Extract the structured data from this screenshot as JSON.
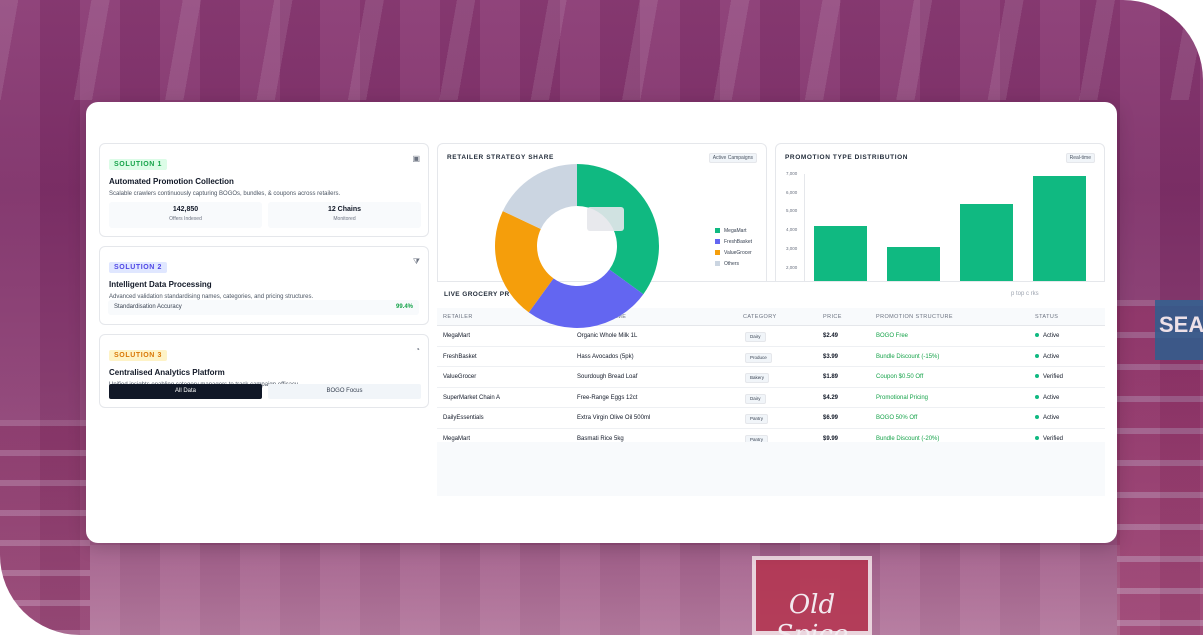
{
  "background": {
    "floor_sign": "Old Spice",
    "side_sign": "SEAFO"
  },
  "solutions": [
    {
      "tag": "SOLUTION 1",
      "tag_color": "#16a34a",
      "tag_bg": "#dcfce7",
      "title": "Automated Promotion Collection",
      "desc": "Scalable crawlers continuously capturing BOGOs, bundles, & coupons across retailers.",
      "stats": [
        {
          "value": "142,850",
          "label": "Offers Indexed"
        },
        {
          "value": "12 Chains",
          "label": "Monitored"
        }
      ],
      "icon": "robot-icon"
    },
    {
      "tag": "SOLUTION 2",
      "tag_color": "#4f46e5",
      "tag_bg": "#e0e7ff",
      "title": "Intelligent Data Processing",
      "desc": "Advanced validation standardising names, categories, and pricing structures.",
      "accuracy_label": "Standardisation Accuracy",
      "accuracy_value": "99.4%",
      "icon": "filter-icon"
    },
    {
      "tag": "SOLUTION 3",
      "tag_color": "#d97706",
      "tag_bg": "#fef3c7",
      "title": "Centralised Analytics Platform",
      "desc": "Unified insights enabling category managers to track campaign efficacy.",
      "toggle": [
        "All Data",
        "BOGO Focus"
      ],
      "icon": "pie-chart-icon"
    }
  ],
  "strategy_panel": {
    "title": "RETAILER STRATEGY SHARE",
    "badge": "Active Campaigns"
  },
  "promo_panel": {
    "title": "PROMOTION TYPE DISTRIBUTION",
    "badge": "Real-time"
  },
  "chart_data": [
    {
      "type": "pie",
      "title": "RETAILER STRATEGY SHARE",
      "categories": [
        "MegaMart",
        "FreshBasket",
        "ValueGrocer",
        "Others"
      ],
      "values": [
        35,
        25,
        22,
        18
      ],
      "colors": [
        "#10b981",
        "#6366f1",
        "#f59e0b",
        "#cbd5e1"
      ],
      "legend": "right"
    },
    {
      "type": "bar",
      "title": "PROMOTION TYPE DISTRIBUTION",
      "values": [
        4200,
        3100,
        5400,
        6900
      ],
      "ylim": [
        0,
        7000
      ],
      "yticks": [
        "1,000",
        "2,000",
        "3,000",
        "4,000",
        "5,000",
        "6,000",
        "7,000"
      ],
      "color": "#10b981",
      "grid": false
    }
  ],
  "table": {
    "title": "LIVE GROCERY PR",
    "hint": "p top c          rks",
    "headers": [
      "RETAILER",
      "PRODUCT NAME",
      "CATEGORY",
      "PRICE",
      "PROMOTION STRUCTURE",
      "STATUS"
    ],
    "rows": [
      {
        "retailer": "MegaMart",
        "product": "Organic Whole Milk 1L",
        "category": "Dairy",
        "price": "$2.49",
        "promo": "BOGO Free",
        "status": "Active"
      },
      {
        "retailer": "FreshBasket",
        "product": "Hass Avocados (5pk)",
        "category": "Produce",
        "price": "$3.99",
        "promo": "Bundle Discount (-15%)",
        "status": "Active"
      },
      {
        "retailer": "ValueGrocer",
        "product": "Sourdough Bread Loaf",
        "category": "Bakery",
        "price": "$1.89",
        "promo": "Coupon $0.50 Off",
        "status": "Verified"
      },
      {
        "retailer": "SuperMarket Chain A",
        "product": "Free-Range Eggs 12ct",
        "category": "Dairy",
        "price": "$4.29",
        "promo": "Promotional Pricing",
        "status": "Active"
      },
      {
        "retailer": "DailyEssentials",
        "product": "Extra Virgin Olive Oil 500ml",
        "category": "Pantry",
        "price": "$6.99",
        "promo": "BOGO 50% Off",
        "status": "Active"
      },
      {
        "retailer": "MegaMart",
        "product": "Basmati Rice 5kg",
        "category": "Pantry",
        "price": "$9.99",
        "promo": "Bundle Discount (-20%)",
        "status": "Verified"
      }
    ]
  }
}
